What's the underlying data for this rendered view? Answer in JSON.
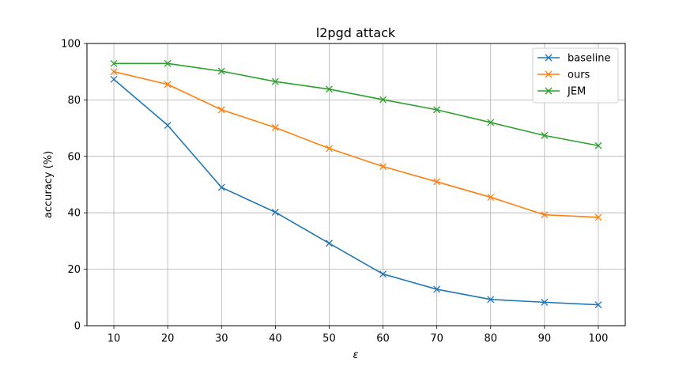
{
  "chart_data": {
    "type": "line",
    "title": "l2pgd attack",
    "xlabel": "ε",
    "ylabel": "accuracy (%)",
    "x": [
      10,
      20,
      30,
      40,
      50,
      60,
      70,
      80,
      90,
      100
    ],
    "xlim": [
      5,
      105
    ],
    "ylim": [
      0,
      100
    ],
    "yticks": [
      0,
      20,
      40,
      60,
      80,
      100
    ],
    "grid": true,
    "legend_position": "top-right",
    "marker": "x",
    "series": [
      {
        "name": "baseline",
        "color": "#1f77b4",
        "values": [
          87.3,
          71.0,
          49.0,
          40.2,
          29.2,
          18.3,
          12.9,
          9.3,
          8.3,
          7.4
        ]
      },
      {
        "name": "ours",
        "color": "#ff7f0e",
        "values": [
          90.0,
          85.5,
          76.5,
          70.2,
          62.8,
          56.4,
          51.0,
          45.5,
          39.3,
          38.4
        ]
      },
      {
        "name": "JEM",
        "color": "#2ca02c",
        "values": [
          92.9,
          92.9,
          90.2,
          86.5,
          83.8,
          80.1,
          76.5,
          72.0,
          67.4,
          63.8
        ]
      }
    ]
  }
}
